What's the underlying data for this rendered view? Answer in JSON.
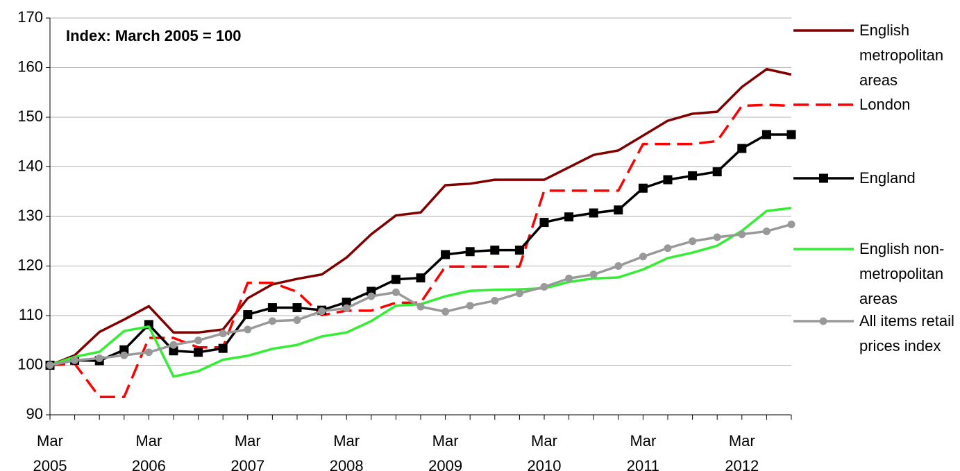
{
  "chart_data": {
    "type": "line",
    "annotation": "Index: March 2005 = 100",
    "categories": [
      "Mar\n2005",
      null,
      null,
      null,
      "Mar\n2006",
      null,
      null,
      null,
      "Mar\n2007",
      null,
      null,
      null,
      "Mar\n2008",
      null,
      null,
      null,
      "Mar\n2009",
      null,
      null,
      null,
      "Mar\n2010",
      null,
      null,
      null,
      "Mar\n2011",
      null,
      null,
      null,
      "Mar\n2012",
      null,
      null
    ],
    "series": [
      {
        "name": "English metropolitan areas",
        "color": "#800000",
        "dashed": false,
        "marker": "none",
        "values": [
          100,
          102,
          106.7,
          109.2,
          111.9,
          106.6,
          106.6,
          107.2,
          113.5,
          116.3,
          117.4,
          118.3,
          121.7,
          126.4,
          130.2,
          130.8,
          136.3,
          136.6,
          137.4,
          137.4,
          137.4,
          139.9,
          142.4,
          143.3,
          146.3,
          149.3,
          150.7,
          151.1,
          156.1,
          159.7,
          158.6
        ]
      },
      {
        "name": "London",
        "color": "#ff0000",
        "dashed": true,
        "marker": "none",
        "values": [
          100,
          100.3,
          93.6,
          93.6,
          105.5,
          105.5,
          103.6,
          103.6,
          116.6,
          116.6,
          114.8,
          110.1,
          111,
          111,
          112.6,
          112.6,
          119.9,
          119.9,
          119.9,
          119.9,
          135.2,
          135.2,
          135.2,
          135.2,
          144.6,
          144.6,
          144.6,
          145.2,
          152.3,
          152.5,
          152.3
        ]
      },
      {
        "name": "England",
        "color": "#000000",
        "dashed": false,
        "marker": "square",
        "values": [
          100,
          101,
          100.9,
          103.1,
          108.2,
          102.9,
          102.6,
          103.4,
          110.2,
          111.6,
          111.6,
          111.1,
          112.7,
          114.9,
          117.3,
          117.6,
          122.3,
          122.9,
          123.2,
          123.2,
          128.8,
          129.9,
          130.7,
          131.3,
          135.7,
          137.4,
          138.2,
          139,
          143.7,
          146.5,
          146.5
        ]
      },
      {
        "name": "English non-metropolitan areas",
        "color": "#33ee33",
        "dashed": false,
        "marker": "none",
        "values": [
          100,
          101.7,
          102.7,
          106.9,
          107.8,
          97.7,
          98.8,
          101.1,
          101.9,
          103.3,
          104.1,
          105.8,
          106.6,
          108.9,
          112,
          112.3,
          113.9,
          115,
          115.2,
          115.3,
          115.5,
          116.8,
          117.5,
          117.7,
          119.3,
          121.6,
          122.7,
          124.1,
          127.1,
          131.1,
          131.7
        ]
      },
      {
        "name": "All items retail prices index",
        "color": "#999999",
        "dashed": false,
        "marker": "circle",
        "values": [
          100,
          101,
          101.4,
          102,
          102.6,
          104.1,
          105,
          106.4,
          107.2,
          108.9,
          109.1,
          110.9,
          111.5,
          113.9,
          114.7,
          111.8,
          110.8,
          112,
          113,
          114.5,
          115.8,
          117.5,
          118.3,
          120,
          121.9,
          123.6,
          125,
          125.8,
          126.4,
          127,
          128.4
        ]
      }
    ],
    "ylim": [
      90,
      170
    ],
    "yticks": [
      90,
      100,
      110,
      120,
      130,
      140,
      150,
      160,
      170
    ],
    "grid": true,
    "legend": "right"
  }
}
